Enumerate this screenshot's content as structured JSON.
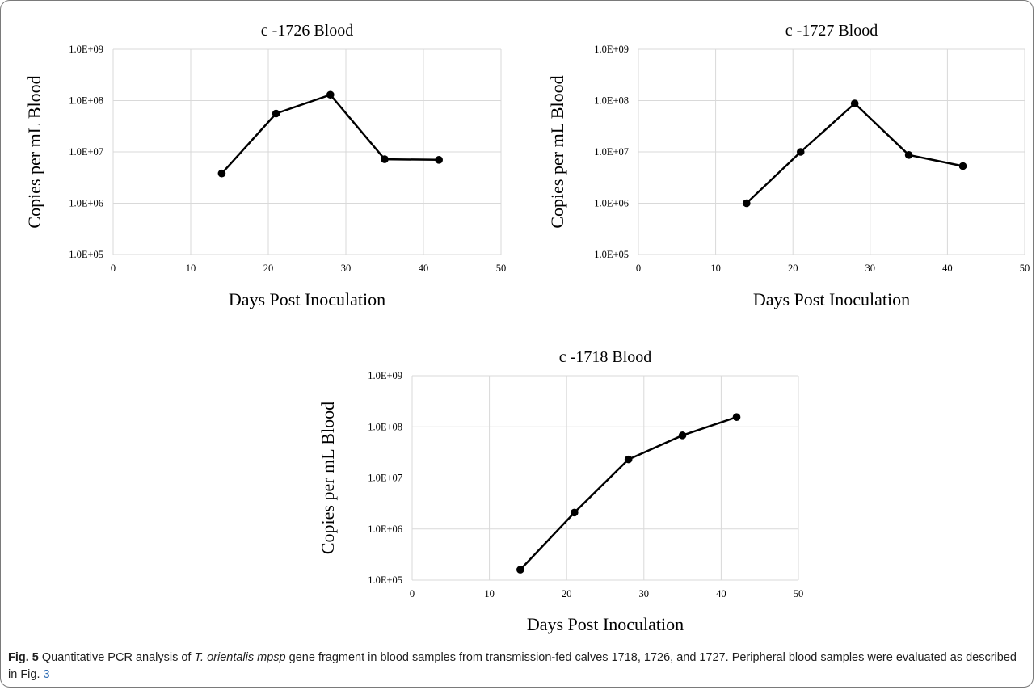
{
  "chart_data": [
    {
      "type": "line",
      "title": "c -1726 Blood",
      "xlabel": "Days Post Inoculation",
      "ylabel": "Copies per mL Blood",
      "xlim": [
        0,
        50
      ],
      "xticks": [
        "0",
        "10",
        "20",
        "30",
        "40",
        "50"
      ],
      "yscale": "log",
      "ylim": [
        100000,
        1000000000
      ],
      "yticks": [
        "1.0E+09",
        "1.0E+08",
        "1.0E+07",
        "1.0E+06",
        "1.0E+05"
      ],
      "grid": true,
      "x": [
        14,
        21,
        28,
        35,
        42
      ],
      "y": [
        3800000,
        56000000,
        130000000,
        7200000,
        7000000
      ]
    },
    {
      "type": "line",
      "title": "c -1727 Blood",
      "xlabel": "Days Post Inoculation",
      "ylabel": "Copies per mL Blood",
      "xlim": [
        0,
        50
      ],
      "xticks": [
        "0",
        "10",
        "20",
        "30",
        "40",
        "50"
      ],
      "yscale": "log",
      "ylim": [
        100000,
        1000000000
      ],
      "yticks": [
        "1.0E+09",
        "1.0E+08",
        "1.0E+07",
        "1.0E+06",
        "1.0E+05"
      ],
      "grid": true,
      "x": [
        14,
        21,
        28,
        35,
        42
      ],
      "y": [
        1000000,
        10000000,
        88000000,
        8700000,
        5300000
      ]
    },
    {
      "type": "line",
      "title": "c -1718 Blood",
      "xlabel": "Days Post Inoculation",
      "ylabel": "Copies per mL Blood",
      "xlim": [
        0,
        50
      ],
      "xticks": [
        "0",
        "10",
        "20",
        "30",
        "40",
        "50"
      ],
      "yscale": "log",
      "ylim": [
        100000,
        1000000000
      ],
      "yticks": [
        "1.0E+09",
        "1.0E+08",
        "1.0E+07",
        "1.0E+06",
        "1.0E+05"
      ],
      "grid": true,
      "x": [
        14,
        21,
        28,
        35,
        42
      ],
      "y": [
        160000,
        2100000,
        23000000,
        68000000,
        155000000
      ]
    }
  ],
  "caption": {
    "label": "Fig. 5",
    "text_a": "  Quantitative PCR analysis of ",
    "species": "T. orientalis mpsp",
    "text_b": " gene fragment in blood samples from transmission-fed calves 1718, 1726, and 1727. Peripheral blood samples were evaluated as described in Fig. ",
    "ref": "3"
  }
}
